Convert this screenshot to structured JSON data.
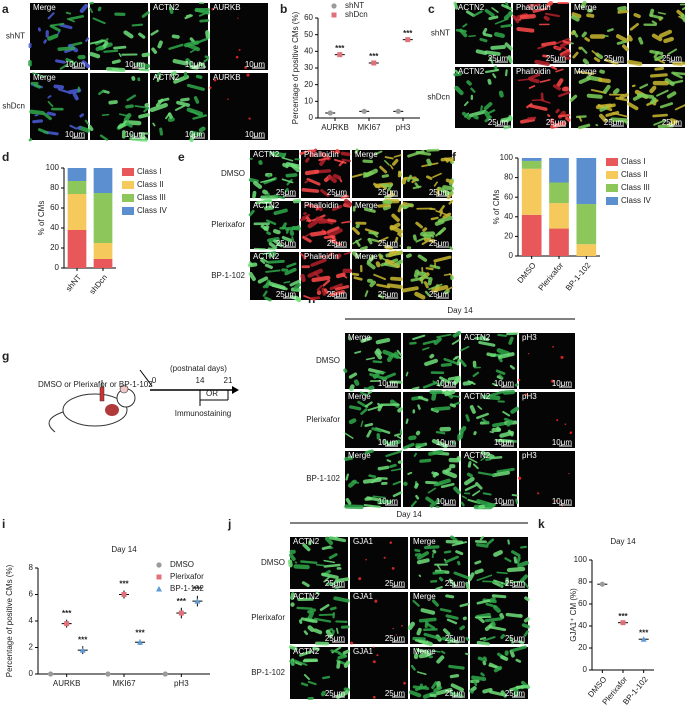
{
  "panel_letters": [
    "a",
    "b",
    "c",
    "d",
    "e",
    "f",
    "g",
    "h",
    "i",
    "j",
    "k"
  ],
  "micrographs": [
    {
      "columns": [
        "Merge",
        "ACTN2",
        "AURKB"
      ],
      "rows": [
        "shNT",
        "shDcn"
      ],
      "scale": "10μm"
    },
    {
      "columns": [
        "ACTN2",
        "Phalloidin",
        "Merge"
      ],
      "rows": [
        "shNT",
        "shDcn"
      ],
      "scale": "25μm"
    },
    {
      "columns": [
        "ACTN2",
        "Phalloidin",
        "Merge"
      ],
      "rows": [
        "DMSO",
        "Plerixafor",
        "BP-1-102"
      ],
      "scale": "25μm"
    },
    {
      "title": "Day 14",
      "columns": [
        "Merge",
        "ACTN2",
        "pH3"
      ],
      "rows": [
        "DMSO",
        "Plerixafor",
        "BP-1-102"
      ],
      "scale": "10μm"
    },
    {
      "title": "Day 14",
      "columns": [
        "ACTN2",
        "GJA1",
        "Merge"
      ],
      "rows": [
        "DMSO",
        "Plerixafor",
        "BP-1-102"
      ],
      "scale": "25μm"
    }
  ],
  "schematic": {
    "treatment": "DMSO or Plerixafor or BP-1-102",
    "axis_label": "(postnatal days)",
    "days": [
      "0",
      "14",
      "21"
    ],
    "or": "OR",
    "readout": "Immunostaining"
  },
  "chart_data": [
    {
      "type": "dot",
      "y_label": "Percentage of positive CMs (%)",
      "categories": [
        "AURKB",
        "MKI67",
        "pH3"
      ],
      "series": [
        {
          "name": "shNT",
          "color": "#9a9a9a",
          "marker": "circle",
          "values": [
            3,
            4,
            4
          ]
        },
        {
          "name": "shDcn",
          "color": "#e0707a",
          "marker": "square",
          "values": [
            38,
            33,
            47
          ],
          "significance": [
            "***",
            "***",
            "***"
          ]
        }
      ],
      "ylim": [
        0,
        60
      ],
      "yticks": [
        0,
        10,
        20,
        30,
        40,
        50,
        60
      ]
    },
    {
      "type": "stacked_bar",
      "y_label": "% of CMs",
      "categories": [
        "shNT",
        "shDcn"
      ],
      "series": [
        {
          "name": "Class I",
          "color": "#e8585a",
          "values": [
            38,
            9
          ]
        },
        {
          "name": "Class II",
          "color": "#f5c95c",
          "values": [
            36,
            16
          ]
        },
        {
          "name": "Class III",
          "color": "#8dc65a",
          "values": [
            13,
            50
          ]
        },
        {
          "name": "Class IV",
          "color": "#5b8fcf",
          "values": [
            13,
            25
          ]
        }
      ],
      "ylim": [
        0,
        100
      ],
      "yticks": [
        0,
        20,
        40,
        60,
        80,
        100
      ]
    },
    {
      "type": "stacked_bar",
      "y_label": "% of CMs",
      "categories": [
        "DMSO",
        "Plerixafor",
        "BP-1-102"
      ],
      "series": [
        {
          "name": "Class I",
          "color": "#e8585a",
          "values": [
            42,
            28,
            0
          ]
        },
        {
          "name": "Class II",
          "color": "#f5c95c",
          "values": [
            47,
            26,
            12
          ]
        },
        {
          "name": "Class III",
          "color": "#8dc65a",
          "values": [
            8,
            21,
            41
          ]
        },
        {
          "name": "Class IV",
          "color": "#5b8fcf",
          "values": [
            3,
            25,
            47
          ]
        }
      ],
      "ylim": [
        0,
        100
      ],
      "yticks": [
        0,
        20,
        40,
        60,
        80,
        100
      ]
    },
    {
      "type": "dot",
      "title": "Day 14",
      "y_label": "Percentage of positive CMs (%)",
      "categories": [
        "AURKB",
        "MKI67",
        "pH3"
      ],
      "series": [
        {
          "name": "DMSO",
          "color": "#9a9a9a",
          "marker": "circle",
          "values": [
            0,
            0,
            0
          ],
          "errors": [
            0,
            0,
            0
          ]
        },
        {
          "name": "Plerixafor",
          "color": "#e0707a",
          "marker": "square",
          "values": [
            3.8,
            6.0,
            4.6
          ],
          "errors": [
            0.3,
            0.3,
            0.4
          ],
          "significance": [
            "***",
            "***",
            "***"
          ]
        },
        {
          "name": "BP-1-102",
          "color": "#5b9bd5",
          "marker": "triangle",
          "values": [
            1.8,
            2.4,
            5.5
          ],
          "errors": [
            0.3,
            0.2,
            0.4
          ],
          "significance": [
            "***",
            "***",
            "***"
          ]
        }
      ],
      "ylim": [
        0,
        8
      ],
      "yticks": [
        0,
        2,
        4,
        6,
        8
      ]
    },
    {
      "type": "dot",
      "title": "Day 14",
      "y_label": "GJA1⁺ CM (%)",
      "categories": [
        "DMSO",
        "Plerixafor",
        "BP-1-102"
      ],
      "series": [
        {
          "name": "DMSO",
          "color": "#9a9a9a",
          "marker": "circle",
          "values": [
            78,
            null,
            null
          ]
        },
        {
          "name": "Plerixafor",
          "color": "#e0707a",
          "marker": "square",
          "values": [
            null,
            43,
            null
          ],
          "significance": [
            null,
            "***",
            null
          ]
        },
        {
          "name": "BP-1-102",
          "color": "#5b9bd5",
          "marker": "triangle",
          "values": [
            null,
            null,
            28
          ],
          "significance": [
            null,
            null,
            "***"
          ]
        }
      ],
      "ylim": [
        0,
        100
      ],
      "yticks": [
        0,
        20,
        40,
        60,
        80,
        100
      ]
    }
  ]
}
